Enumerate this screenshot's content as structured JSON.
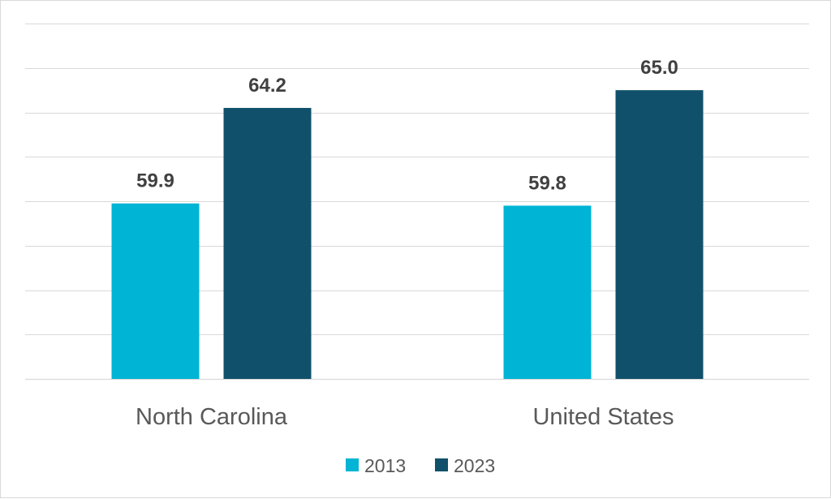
{
  "chart_data": {
    "type": "bar",
    "categories": [
      "North Carolina",
      "United States"
    ],
    "series": [
      {
        "name": "2013",
        "color": "#00B4D5",
        "values": [
          59.9,
          59.8
        ]
      },
      {
        "name": "2023",
        "color": "#10506A",
        "values": [
          64.2,
          65.0
        ]
      }
    ],
    "ylim": [
      52,
      68
    ],
    "ytick_step": 2,
    "value_format_decimals": 1,
    "grid": true,
    "legend": "bottom-center",
    "title": "",
    "xlabel": "",
    "ylabel": ""
  }
}
